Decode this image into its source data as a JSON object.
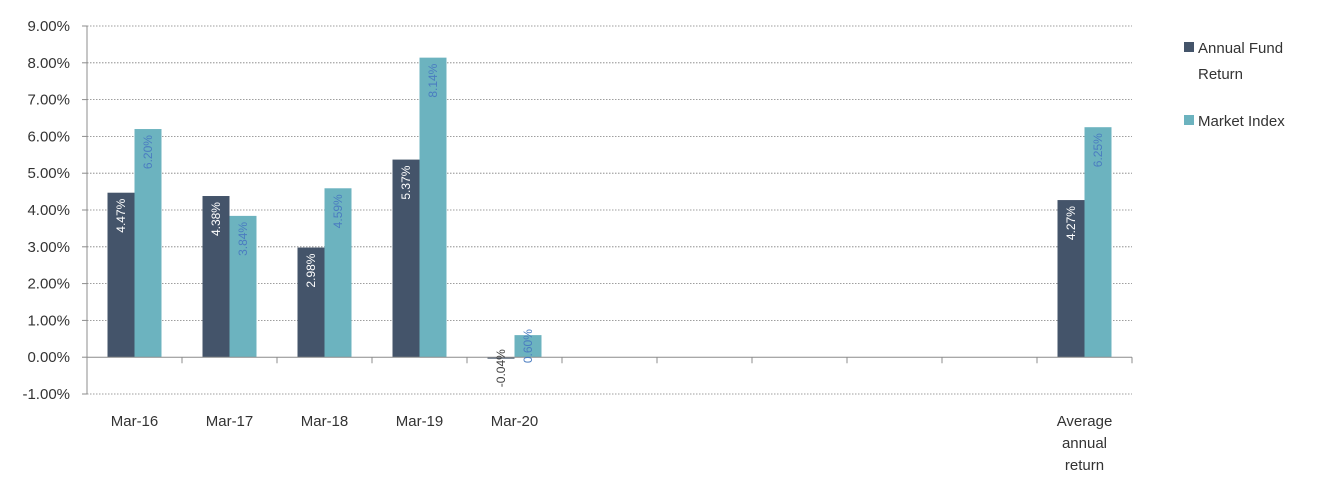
{
  "chart_data": {
    "type": "bar",
    "categories": [
      [
        "Mar-16"
      ],
      [
        "Mar-17"
      ],
      [
        "Mar-18"
      ],
      [
        "Mar-19"
      ],
      [
        "Mar-20"
      ],
      [
        ""
      ],
      [
        ""
      ],
      [
        ""
      ],
      [
        ""
      ],
      [
        ""
      ],
      [
        "Average",
        "annual",
        "return"
      ]
    ],
    "series": [
      {
        "name": "Annual Fund Return",
        "color": "#44546a",
        "label_color": "#ffffff",
        "values": [
          4.47,
          4.38,
          2.98,
          5.37,
          -0.04,
          null,
          null,
          null,
          null,
          null,
          4.27
        ],
        "labels": [
          "4.47%",
          "4.38%",
          "2.98%",
          "5.37%",
          "-0.04%",
          "",
          "",
          "",
          "",
          "",
          "4.27%"
        ]
      },
      {
        "name": "Market Index",
        "color": "#6cb3bf",
        "label_color": "#4a7cc0",
        "values": [
          6.2,
          3.84,
          4.59,
          8.14,
          0.6,
          null,
          null,
          null,
          null,
          null,
          6.25
        ],
        "labels": [
          "6.20%",
          "3.84%",
          "4.59%",
          "8.14%",
          "0.60%",
          "",
          "",
          "",
          "",
          "",
          "6.25%"
        ]
      }
    ],
    "ylim": [
      -1,
      9
    ],
    "yticks": [
      {
        "value": 9,
        "label": "9.00%"
      },
      {
        "value": 8,
        "label": "8.00%"
      },
      {
        "value": 7,
        "label": "7.00%"
      },
      {
        "value": 6,
        "label": "6.00%"
      },
      {
        "value": 5,
        "label": "5.00%"
      },
      {
        "value": 4,
        "label": "4.00%"
      },
      {
        "value": 3,
        "label": "3.00%"
      },
      {
        "value": 2,
        "label": "2.00%"
      },
      {
        "value": 1,
        "label": "1.00%"
      },
      {
        "value": 0,
        "label": "0.00%"
      },
      {
        "value": -1,
        "label": "-1.00%"
      }
    ],
    "grid": true,
    "legend_position": "right"
  }
}
